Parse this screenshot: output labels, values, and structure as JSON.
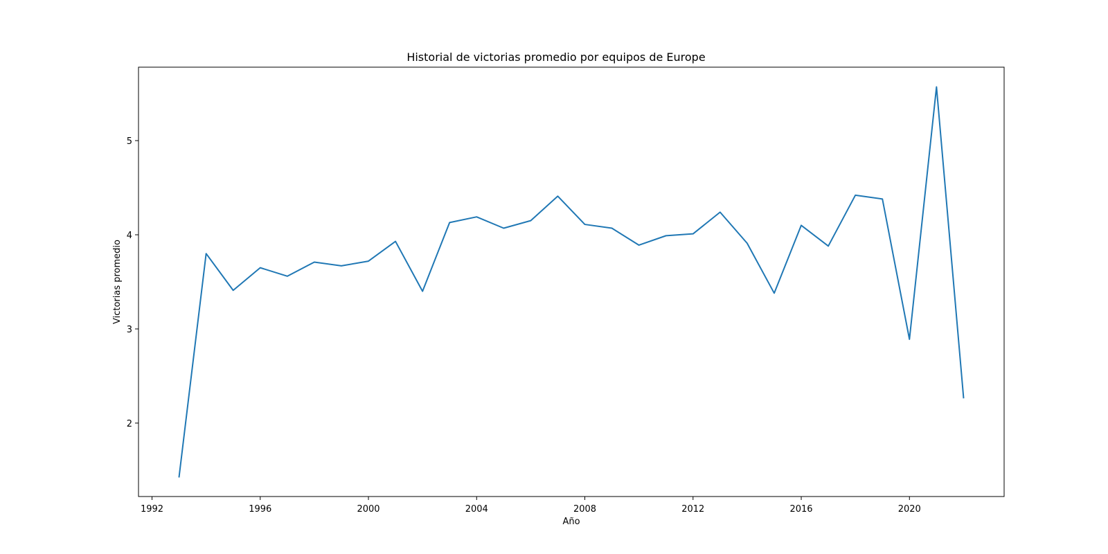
{
  "chart_data": {
    "type": "line",
    "title": "Historial de victorias promedio por equipos de Europe",
    "xlabel": "Año",
    "ylabel": "Victorias promedio",
    "xlim": [
      1991.5,
      2023.5
    ],
    "ylim": [
      1.22,
      5.78
    ],
    "x_ticks": [
      1992,
      1996,
      2000,
      2004,
      2008,
      2012,
      2016,
      2020
    ],
    "y_ticks": [
      2,
      3,
      4,
      5
    ],
    "grid": false,
    "series": [
      {
        "color": "#1f77b4",
        "x": [
          1993,
          1994,
          1995,
          1996,
          1997,
          1998,
          1999,
          2000,
          2001,
          2002,
          2003,
          2004,
          2005,
          2006,
          2007,
          2008,
          2009,
          2010,
          2011,
          2012,
          2013,
          2014,
          2015,
          2016,
          2017,
          2018,
          2019,
          2020,
          2021,
          2022
        ],
        "values": [
          1.43,
          3.8,
          3.41,
          3.65,
          3.56,
          3.71,
          3.67,
          3.72,
          3.93,
          3.4,
          4.13,
          4.19,
          4.07,
          4.15,
          4.41,
          4.11,
          4.07,
          3.89,
          3.99,
          4.01,
          4.24,
          3.91,
          3.38,
          4.1,
          3.88,
          4.42,
          4.38,
          2.89,
          5.57,
          2.27
        ]
      }
    ]
  }
}
